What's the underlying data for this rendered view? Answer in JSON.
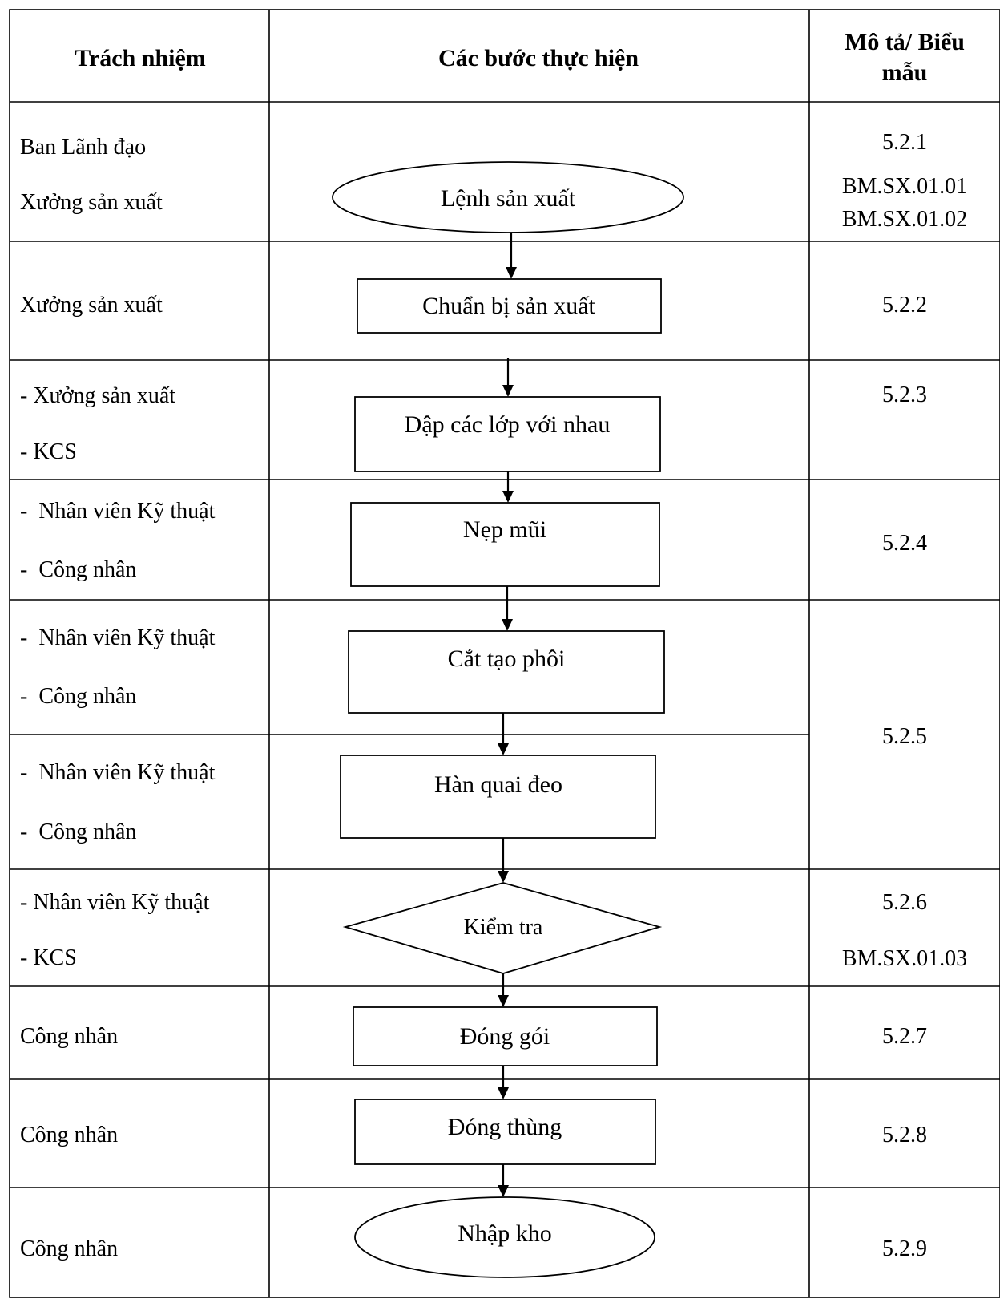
{
  "headers": {
    "responsibility": "Trách nhiệm",
    "steps": "Các bước thực hiện",
    "description_line1": "Mô tả/ Biểu",
    "description_line2": "mẫu"
  },
  "responsibility": {
    "r1_line1": "Ban Lãnh đạo",
    "r1_line2": "Xưởng sản xuất",
    "r2_line1": "Xưởng sản xuất",
    "r3_line1": "- Xưởng sản xuất",
    "r3_line2": "- KCS",
    "r4_line1": "-  Nhân viên Kỹ thuật",
    "r4_line2": "-  Công nhân",
    "r5_line1": "-  Nhân viên Kỹ thuật",
    "r5_line2": "-  Công nhân",
    "r6_line1": "-  Nhân viên Kỹ thuật",
    "r6_line2": "-  Công nhân",
    "r7_line1": "- Nhân viên Kỹ thuật",
    "r7_line2": "- KCS",
    "r8_line1": "Công nhân",
    "r9_line1": "Công nhân",
    "r10_line1": "Công nhân"
  },
  "steps": {
    "start": "Lệnh sản xuất",
    "prepare": "Chuẩn bị sản xuất",
    "press_layers": "Dập các lớp với nhau",
    "nose_clip": "Nẹp mũi",
    "cut_blank": "Cắt tạo phôi",
    "weld_strap": "Hàn quai đeo",
    "inspect": "Kiểm tra",
    "pack": "Đóng gói",
    "box": "Đóng thùng",
    "store": "Nhập kho"
  },
  "description": {
    "d1_line1": "5.2.1",
    "d1_line2": "BM.SX.01.01",
    "d1_line3": "BM.SX.01.02",
    "d2": "5.2.2",
    "d3": "5.2.3",
    "d4": "5.2.4",
    "d5": "5.2.5",
    "d6_line1": "5.2.6",
    "d6_line2": "BM.SX.01.03",
    "d7": "5.2.7",
    "d8": "5.2.8",
    "d9": "5.2.9"
  }
}
